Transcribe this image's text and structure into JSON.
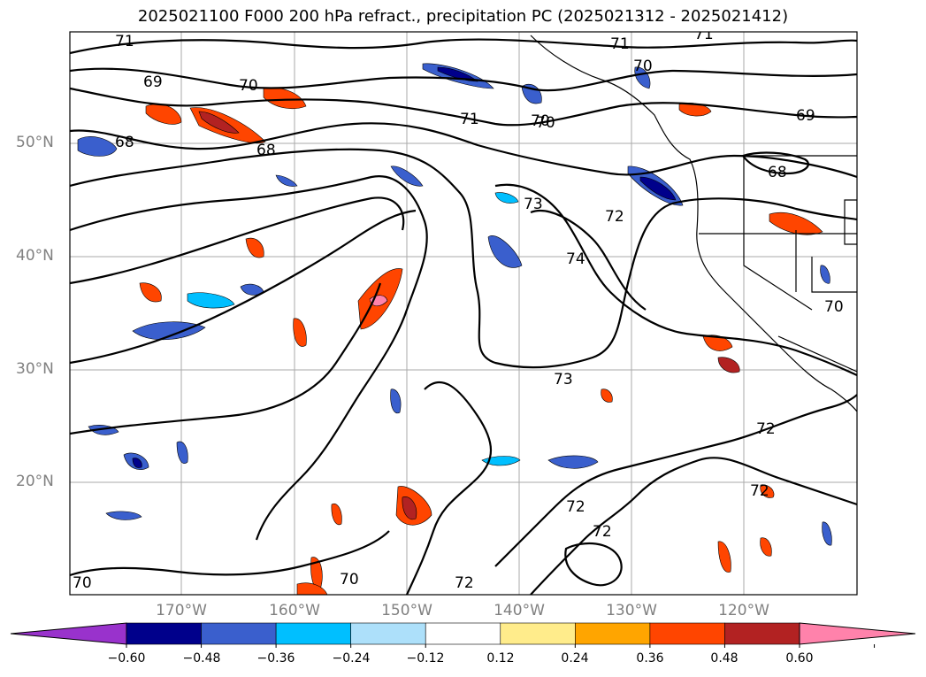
{
  "title": "2025021100 F000 200 hPa refract., precipitation PC (2025021312 - 2025021412)",
  "map": {
    "lat_labels": [
      "50°N",
      "40°N",
      "30°N",
      "20°N"
    ],
    "lon_labels": [
      "170°W",
      "160°W",
      "150°W",
      "140°W",
      "130°W",
      "120°W"
    ],
    "contour_labels": [
      "71",
      "71",
      "71",
      "69",
      "70",
      "70",
      "70",
      "68",
      "68",
      "69",
      "71",
      "70",
      "68",
      "73",
      "72",
      "74",
      "70",
      "73",
      "72",
      "72",
      "72",
      "72",
      "72",
      "70",
      "70"
    ],
    "features": [
      "coastline",
      "state-borders",
      "refractivity-contours",
      "precipitation-shading"
    ]
  },
  "colorbar": {
    "ticks": [
      "−0.60",
      "−0.48",
      "−0.36",
      "−0.24",
      "−0.12",
      "0.12",
      "0.24",
      "0.36",
      "0.48",
      "0.60"
    ],
    "colors": [
      "#9932CC",
      "#00008B",
      "#3A5FCD",
      "#00BFFF",
      "#ADE0FA",
      "#FFFFFF",
      "#FFEC8B",
      "#FFA500",
      "#FF4500",
      "#B22222",
      "#FF82AB"
    ],
    "extend": "both"
  }
}
